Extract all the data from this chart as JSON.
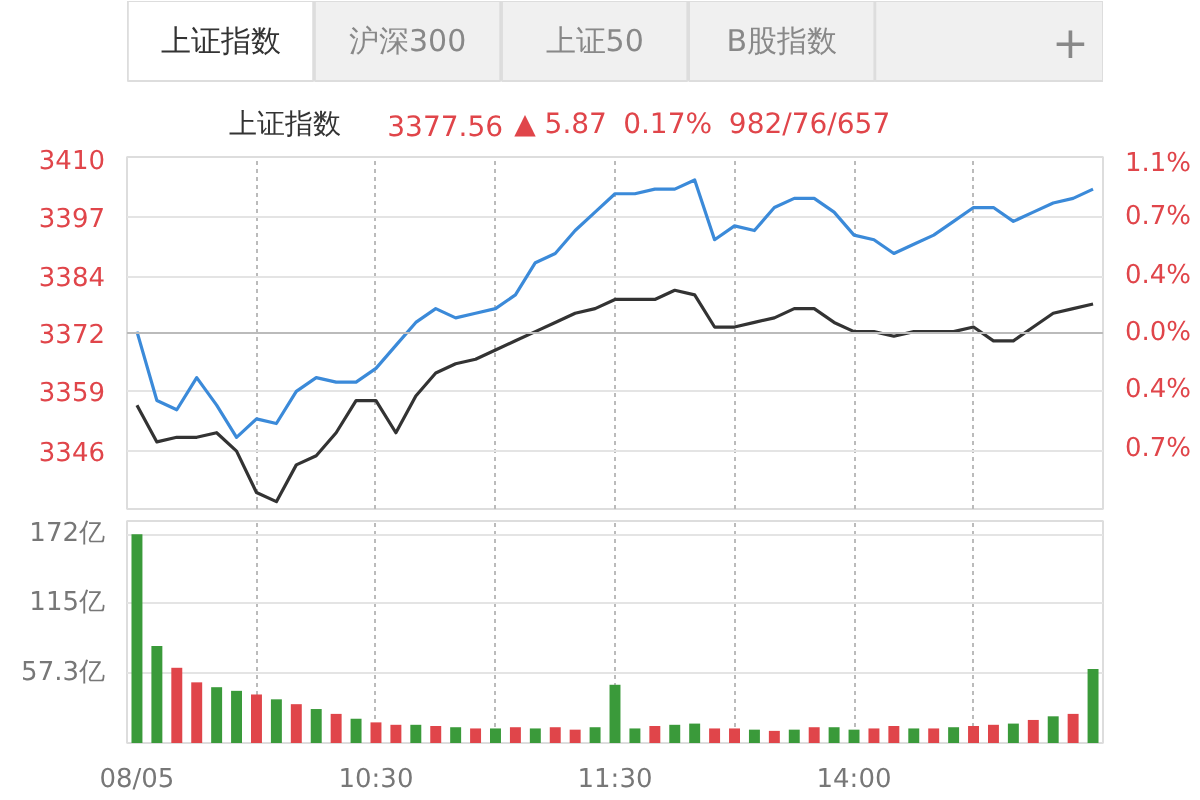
{
  "chart_data": [
    {
      "type": "other",
      "annotations": [
        "上证指数",
        "沪深300",
        "上证50",
        "B股指数",
        "+",
        "上证指数",
        "3377.56",
        "▲ 5.87",
        "0.17%",
        "982/76/657"
      ]
    },
    {
      "type": "line",
      "categories": [
        null,
        null,
        null,
        null,
        null,
        null,
        null,
        null,
        null,
        null,
        null,
        null,
        null,
        null,
        null,
        null,
        null,
        null,
        null,
        null,
        null,
        null,
        null,
        null,
        null,
        null,
        null,
        null,
        null,
        null,
        null,
        null,
        null,
        null,
        null,
        null,
        null,
        null,
        null,
        null,
        null,
        null,
        null,
        null,
        null,
        null,
        null,
        null,
        null
      ],
      "ylim": [
        3333.4,
        3410
      ],
      "yticks": [
        3410,
        3397,
        3384,
        {
          "value": 3371.69,
          "label": "3372"
        },
        3359,
        3346
      ],
      "y2lim": [
        -1.14,
        1.14
      ],
      "y2ticks": [
        {
          "value": 1.14,
          "label": "1.1%"
        },
        {
          "value": 0.75,
          "label": "0.7%"
        },
        {
          "value": 0.37,
          "label": "0.4%"
        },
        {
          "value": 0,
          "label": "0.0%"
        },
        {
          "value": -0.37,
          "label": "0.4%"
        },
        {
          "value": -0.75,
          "label": "0.7%"
        }
      ],
      "tick_labels": "y",
      "grid": true,
      "marker": "none",
      "line_style": "solid",
      "ref_lines": [
        {
          "axis": "y",
          "value": 3371.69,
          "color": "#bbbbbb"
        }
      ],
      "series": [
        {
          "color": "#3b8ad9",
          "values": [
            3372,
            3357,
            3355,
            3362,
            3356,
            3349,
            3353,
            3352,
            3359,
            3362,
            3361,
            3361,
            3364,
            3369,
            3374,
            3377,
            3375,
            3376,
            3377,
            3380,
            3387,
            3389,
            3394,
            3398,
            3402,
            3402,
            3403,
            3403,
            3405,
            3392,
            3395,
            3394,
            3399,
            3401,
            3401,
            3398,
            3393,
            3392,
            3389,
            3391,
            3393,
            3396,
            3399,
            3399,
            3396,
            3398,
            3400,
            3401,
            3403
          ]
        },
        {
          "color": "#333333",
          "values": [
            3356,
            3348,
            3349,
            3349,
            3350,
            3346,
            3337,
            3335,
            3343,
            3345,
            3350,
            3357,
            3357,
            3350,
            3358,
            3363,
            3365,
            3366,
            3368,
            3370,
            3372,
            3374,
            3376,
            3377,
            3379,
            3379,
            3379,
            3381,
            3380,
            3373,
            3373,
            3374,
            3375,
            3377,
            3377,
            3374,
            3372,
            3372,
            3371,
            3372,
            3372,
            3372,
            3373,
            3370,
            3370,
            3373,
            3376,
            3377,
            3378
          ]
        }
      ]
    },
    {
      "type": "bar",
      "categories": [
        "08/05",
        null,
        null,
        null,
        null,
        null,
        null,
        null,
        null,
        null,
        null,
        null,
        "10:30",
        null,
        null,
        null,
        null,
        null,
        null,
        null,
        null,
        null,
        null,
        null,
        "11:30",
        null,
        null,
        null,
        null,
        null,
        null,
        null,
        null,
        null,
        null,
        null,
        "14:00",
        null,
        null,
        null,
        null,
        null,
        null,
        null,
        null,
        null,
        null,
        null,
        null
      ],
      "ylim": [
        0,
        183
      ],
      "yticks": [
        {
          "value": 57.3,
          "label": "57.3亿"
        },
        {
          "value": 115,
          "label": "115亿"
        },
        {
          "value": 172,
          "label": "172亿"
        }
      ],
      "grid": true,
      "values": [
        172,
        80,
        62,
        50,
        46,
        43,
        40,
        36,
        32,
        28,
        24,
        20,
        17,
        15,
        15,
        14,
        13,
        12,
        12,
        13,
        12,
        13,
        11,
        13,
        48,
        12,
        14,
        15,
        16,
        12,
        12,
        11,
        10,
        11,
        13,
        13,
        11,
        12,
        14,
        12,
        12,
        13,
        14,
        15,
        16,
        19,
        22,
        24,
        61
      ],
      "colors": [
        "#3a9a3a",
        "#3a9a3a",
        "#e0454a",
        "#e0454a",
        "#3a9a3a",
        "#3a9a3a",
        "#e0454a",
        "#3a9a3a",
        "#e0454a",
        "#3a9a3a",
        "#e0454a",
        "#3a9a3a",
        "#e0454a",
        "#e0454a",
        "#3a9a3a",
        "#e0454a",
        "#3a9a3a",
        "#e0454a",
        "#3a9a3a",
        "#e0454a",
        "#3a9a3a",
        "#e0454a",
        "#e0454a",
        "#3a9a3a",
        "#3a9a3a",
        "#3a9a3a",
        "#e0454a",
        "#3a9a3a",
        "#3a9a3a",
        "#e0454a",
        "#e0454a",
        "#3a9a3a",
        "#e0454a",
        "#3a9a3a",
        "#e0454a",
        "#3a9a3a",
        "#3a9a3a",
        "#e0454a",
        "#e0454a",
        "#3a9a3a",
        "#e0454a",
        "#3a9a3a",
        "#e0454a",
        "#e0454a",
        "#3a9a3a",
        "#e0454a",
        "#3a9a3a",
        "#e0454a",
        "#3a9a3a"
      ]
    }
  ]
}
